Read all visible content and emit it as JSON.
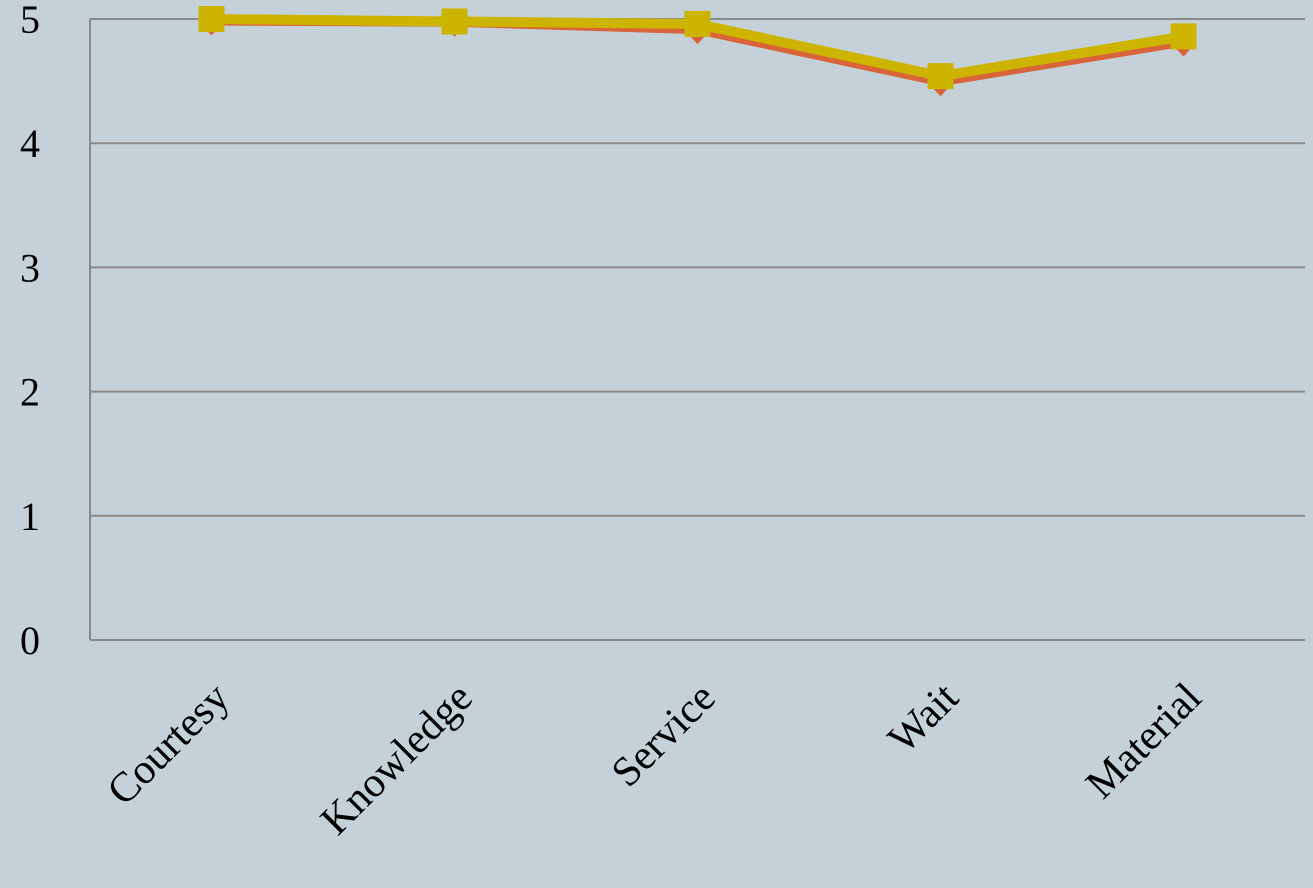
{
  "chart_data": {
    "type": "line",
    "categories": [
      "Courtesy",
      "Knowledge",
      "Service",
      "Wait",
      "Material"
    ],
    "series": [
      {
        "color": "#d9643a",
        "marker": "diamond",
        "values": [
          4.98,
          4.97,
          4.91,
          4.49,
          4.81
        ]
      },
      {
        "color": "#cdb400",
        "marker": "square",
        "values": [
          5.0,
          4.98,
          4.96,
          4.54,
          4.86
        ]
      }
    ],
    "ylim": [
      0,
      5
    ],
    "yticks": [
      0,
      1,
      2,
      3,
      4,
      5
    ],
    "grid": true
  }
}
